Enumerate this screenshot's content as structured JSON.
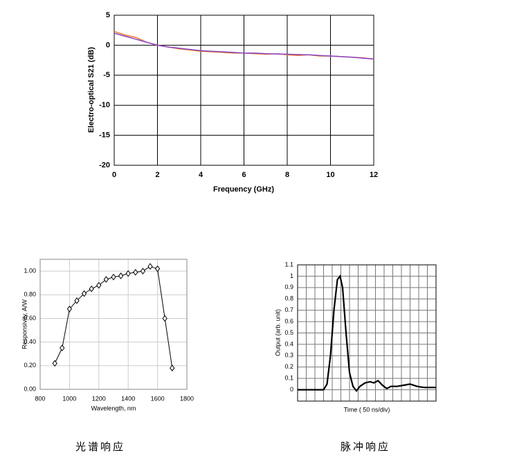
{
  "chart_data": [
    {
      "type": "line",
      "xlabel": "Frequency (GHz)",
      "ylabel": "Electro-optical S21 (dB)",
      "x": [
        0,
        0.5,
        1,
        1.5,
        2,
        2.5,
        3,
        3.5,
        4,
        4.5,
        5,
        5.5,
        6,
        6.5,
        7,
        7.5,
        8,
        8.5,
        9,
        9.5,
        10,
        10.5,
        11,
        11.5,
        12
      ],
      "series": [
        {
          "color": "#f07a1e",
          "values": [
            2.3,
            1.7,
            1.3,
            0.5,
            0.0,
            -0.3,
            -0.6,
            -0.8,
            -1.0,
            -1.1,
            -1.2,
            -1.3,
            -1.3,
            -1.4,
            -1.5,
            -1.4,
            -1.6,
            -1.7,
            -1.6,
            -1.8,
            -1.8,
            -1.9,
            -2.0,
            -2.1,
            -2.3
          ]
        },
        {
          "color": "#8a44c8",
          "values": [
            2.0,
            1.5,
            1.0,
            0.5,
            0.0,
            -0.3,
            -0.5,
            -0.7,
            -0.9,
            -1.0,
            -1.1,
            -1.2,
            -1.3,
            -1.3,
            -1.4,
            -1.45,
            -1.5,
            -1.55,
            -1.6,
            -1.7,
            -1.8,
            -1.9,
            -2.0,
            -2.15,
            -2.3
          ]
        }
      ],
      "xlim": [
        0,
        12
      ],
      "xticks": [
        0,
        2,
        4,
        6,
        8,
        10,
        12
      ],
      "ylim": [
        -20,
        5
      ],
      "yticks": [
        -20,
        -15,
        -10,
        -5,
        0,
        5
      ],
      "grid": true,
      "grid_color": "#000"
    },
    {
      "type": "line",
      "xlabel": "Wavelength, nm",
      "ylabel": "Responsivity, A/W",
      "caption": "光谱响应",
      "x": [
        900,
        950,
        1000,
        1050,
        1100,
        1150,
        1200,
        1250,
        1300,
        1350,
        1400,
        1450,
        1500,
        1550,
        1600,
        1650,
        1700
      ],
      "series": [
        {
          "color": "#000",
          "values": [
            0.22,
            0.35,
            0.68,
            0.75,
            0.81,
            0.85,
            0.88,
            0.93,
            0.95,
            0.96,
            0.98,
            0.99,
            1.0,
            1.04,
            1.02,
            0.6,
            0.18
          ]
        }
      ],
      "marker": "diamond",
      "xlim": [
        800,
        1800
      ],
      "xticks": [
        800,
        1000,
        1200,
        1400,
        1600,
        1800
      ],
      "ylim": [
        0,
        1.1
      ],
      "yticks": [
        {
          "value": 0,
          "label": "0.00"
        },
        {
          "value": 0.2,
          "label": "0.20"
        },
        {
          "value": 0.4,
          "label": "0.40"
        },
        {
          "value": 0.6,
          "label": "0.60"
        },
        {
          "value": 0.8,
          "label": "0.80"
        },
        {
          "value": 1,
          "label": "1.00"
        }
      ],
      "grid": true,
      "grid_color": "#ccc"
    },
    {
      "type": "line",
      "xlabel": "Time ( 50 ns/div)",
      "ylabel": "Output (arb. unit)",
      "caption": "脉冲响应",
      "x": [
        0,
        3,
        3.4,
        3.8,
        4.2,
        4.6,
        4.9,
        5.2,
        5.6,
        6.0,
        6.4,
        6.8,
        7.2,
        7.8,
        8.4,
        8.8,
        9.3,
        9.8,
        10.3,
        10.8,
        11.5,
        12.3,
        13,
        13.8,
        14.6,
        16
      ],
      "series": [
        {
          "color": "#000",
          "values": [
            0,
            0,
            0.05,
            0.3,
            0.7,
            0.97,
            1.0,
            0.9,
            0.5,
            0.15,
            0.03,
            -0.01,
            0.03,
            0.06,
            0.07,
            0.06,
            0.08,
            0.04,
            0.01,
            0.03,
            0.03,
            0.04,
            0.05,
            0.03,
            0.02,
            0.02
          ]
        }
      ],
      "xlim": [
        0,
        16
      ],
      "ylim": [
        -0.1,
        1.1
      ],
      "yticks": [
        0,
        0.1,
        0.2,
        0.3,
        0.4,
        0.5,
        0.6,
        0.7,
        0.8,
        0.9,
        1.0,
        1.1
      ],
      "grid": true,
      "grid_color": "#777"
    }
  ]
}
